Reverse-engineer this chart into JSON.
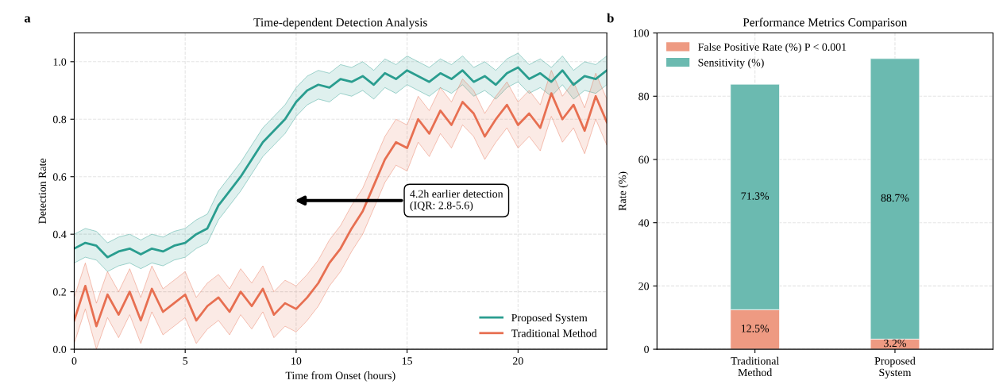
{
  "chart_data": [
    {
      "type": "line",
      "title": "Time-dependent Detection Analysis",
      "xlabel": "Time from Onset (hours)",
      "ylabel": "Detection Rate",
      "x": [
        0,
        0.5,
        1,
        1.5,
        2,
        2.5,
        3,
        3.5,
        4,
        4.5,
        5,
        5.5,
        6,
        6.5,
        7,
        7.5,
        8,
        8.5,
        9,
        9.5,
        10,
        10.5,
        11,
        11.5,
        12,
        12.5,
        13,
        13.5,
        14,
        14.5,
        15,
        15.5,
        16,
        16.5,
        17,
        17.5,
        18,
        18.5,
        19,
        19.5,
        20,
        20.5,
        21,
        21.5,
        22,
        22.5,
        23,
        23.5,
        24
      ],
      "series": [
        {
          "name": "Proposed System",
          "color": "#2a9d8f",
          "values": [
            0.35,
            0.37,
            0.36,
            0.32,
            0.34,
            0.35,
            0.33,
            0.35,
            0.34,
            0.36,
            0.37,
            0.4,
            0.42,
            0.5,
            0.55,
            0.6,
            0.66,
            0.72,
            0.76,
            0.8,
            0.86,
            0.9,
            0.92,
            0.91,
            0.94,
            0.93,
            0.95,
            0.92,
            0.96,
            0.94,
            0.97,
            0.95,
            0.93,
            0.96,
            0.94,
            0.97,
            0.93,
            0.95,
            0.92,
            0.96,
            0.98,
            0.94,
            0.96,
            0.93,
            0.97,
            0.92,
            0.95,
            0.94,
            0.97
          ],
          "lower": [
            0.3,
            0.32,
            0.31,
            0.27,
            0.29,
            0.3,
            0.28,
            0.3,
            0.29,
            0.31,
            0.32,
            0.35,
            0.37,
            0.45,
            0.5,
            0.55,
            0.61,
            0.67,
            0.71,
            0.75,
            0.81,
            0.85,
            0.87,
            0.86,
            0.89,
            0.88,
            0.9,
            0.87,
            0.91,
            0.89,
            0.92,
            0.9,
            0.88,
            0.91,
            0.89,
            0.92,
            0.88,
            0.9,
            0.87,
            0.91,
            0.93,
            0.89,
            0.91,
            0.88,
            0.92,
            0.87,
            0.9,
            0.89,
            0.92
          ],
          "upper": [
            0.4,
            0.42,
            0.41,
            0.37,
            0.39,
            0.4,
            0.38,
            0.4,
            0.39,
            0.41,
            0.42,
            0.45,
            0.47,
            0.55,
            0.6,
            0.65,
            0.71,
            0.77,
            0.81,
            0.85,
            0.91,
            0.95,
            0.97,
            0.96,
            0.99,
            0.98,
            1.0,
            0.97,
            1.01,
            0.99,
            1.02,
            1.0,
            0.98,
            1.01,
            0.99,
            1.02,
            0.98,
            1.0,
            0.97,
            1.01,
            1.03,
            0.99,
            1.01,
            0.98,
            1.02,
            0.97,
            1.0,
            0.99,
            1.02
          ]
        },
        {
          "name": "Traditional Method",
          "color": "#e76f51",
          "values": [
            0.1,
            0.22,
            0.08,
            0.19,
            0.12,
            0.2,
            0.1,
            0.21,
            0.13,
            0.16,
            0.19,
            0.1,
            0.15,
            0.18,
            0.13,
            0.2,
            0.15,
            0.21,
            0.12,
            0.16,
            0.14,
            0.18,
            0.23,
            0.3,
            0.35,
            0.42,
            0.48,
            0.57,
            0.66,
            0.72,
            0.7,
            0.8,
            0.75,
            0.83,
            0.78,
            0.86,
            0.82,
            0.74,
            0.8,
            0.85,
            0.78,
            0.82,
            0.77,
            0.89,
            0.8,
            0.85,
            0.76,
            0.88,
            0.79
          ],
          "lower": [
            0.02,
            0.14,
            0.0,
            0.11,
            0.04,
            0.12,
            0.02,
            0.13,
            0.05,
            0.08,
            0.11,
            0.02,
            0.07,
            0.1,
            0.05,
            0.12,
            0.07,
            0.13,
            0.04,
            0.08,
            0.06,
            0.1,
            0.15,
            0.22,
            0.27,
            0.34,
            0.4,
            0.49,
            0.58,
            0.64,
            0.62,
            0.72,
            0.67,
            0.75,
            0.7,
            0.78,
            0.74,
            0.66,
            0.72,
            0.77,
            0.7,
            0.74,
            0.69,
            0.81,
            0.72,
            0.77,
            0.68,
            0.8,
            0.71
          ],
          "upper": [
            0.18,
            0.3,
            0.16,
            0.27,
            0.2,
            0.28,
            0.18,
            0.29,
            0.21,
            0.24,
            0.27,
            0.18,
            0.23,
            0.26,
            0.21,
            0.28,
            0.23,
            0.29,
            0.2,
            0.24,
            0.22,
            0.26,
            0.31,
            0.38,
            0.43,
            0.5,
            0.56,
            0.65,
            0.74,
            0.8,
            0.78,
            0.88,
            0.83,
            0.91,
            0.86,
            0.94,
            0.9,
            0.82,
            0.88,
            0.93,
            0.86,
            0.9,
            0.85,
            0.97,
            0.88,
            0.93,
            0.84,
            0.96,
            0.87
          ]
        }
      ],
      "xlim": [
        0,
        24
      ],
      "ylim": [
        0,
        1.1
      ],
      "xticks": [
        0,
        5,
        10,
        15,
        20
      ],
      "yticks": [
        {
          "value": 0,
          "label": "0.0"
        },
        0.2,
        0.4,
        0.6,
        0.8,
        {
          "value": 1,
          "label": "1.0"
        }
      ],
      "grid": true,
      "legend": "bottom right",
      "marker": "none",
      "line_style": "solid",
      "annotations": [
        "a",
        "4.2h earlier detection\n(IQR: 2.8-5.6)"
      ]
    },
    {
      "type": "bar",
      "title": "Performance Metrics Comparison",
      "ylabel": "Rate (%)",
      "categories": [
        "Traditional\nMethod",
        "Proposed\nSystem"
      ],
      "stacked": true,
      "series": [
        {
          "name": "False Positive Rate (%) P < 0.001",
          "color": "#ee9a82",
          "values": [
            12.5,
            3.2
          ],
          "value_labels": [
            "12.5%",
            "3.2%"
          ]
        },
        {
          "name": "Sensitivity (%)",
          "color": "#6bbab0",
          "values": [
            71.3,
            88.7
          ],
          "value_labels": [
            "71.3%",
            "88.7%"
          ]
        }
      ],
      "ylim": [
        0,
        100
      ],
      "yticks": [
        0,
        20,
        40,
        60,
        80,
        100
      ],
      "grid": true,
      "legend": "top left",
      "annotations": [
        "b"
      ]
    }
  ]
}
